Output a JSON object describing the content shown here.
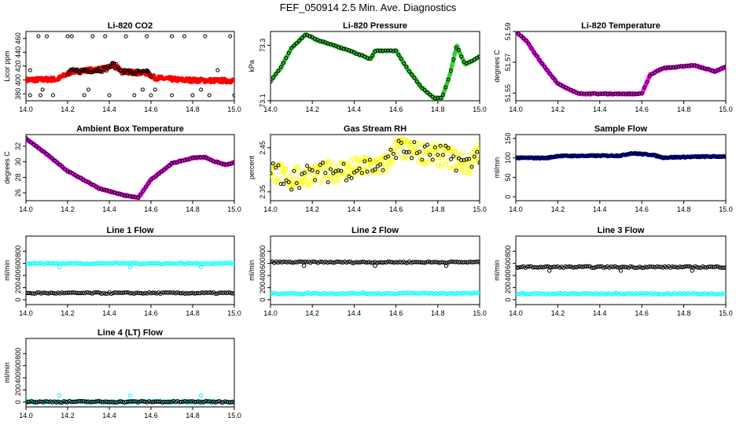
{
  "page_title": "FEF_050914  2.5 Min. Ave. Diagnostics",
  "colors": {
    "black": "#000000",
    "red": "#ff0000",
    "green": "#33cc33",
    "magenta": "#ff00ff",
    "yellow": "#ffff00",
    "cyan": "#00ffff",
    "blue": "#0000aa"
  },
  "chart_data": [
    {
      "id": "co2",
      "type": "scatter",
      "title": "Li-820 CO2",
      "ylabel": "Licor ppm",
      "xlim": [
        14.0,
        15.0
      ],
      "ylim": [
        370,
        470
      ],
      "xticks": [
        "14.0",
        "14.2",
        "14.4",
        "14.6",
        "14.8",
        "15.0"
      ],
      "yticks": [
        380,
        400,
        420,
        440,
        460
      ],
      "series": [
        {
          "name": "co2_line",
          "color": "#ff0000",
          "pattern": "co2"
        },
        {
          "name": "co2_outliers",
          "color": "#000000",
          "pattern": "co2_outliers"
        }
      ]
    },
    {
      "id": "pressure",
      "type": "scatter",
      "title": "Li-820 Pressure",
      "ylabel": "kPa",
      "xlim": [
        14.0,
        15.0
      ],
      "ylim": [
        73.1,
        73.35
      ],
      "xticks": [
        "14.0",
        "14.2",
        "14.4",
        "14.6",
        "14.8",
        "15.0"
      ],
      "yticks": [
        73.1,
        73.3
      ],
      "series": [
        {
          "name": "pressure",
          "color": "#33cc33",
          "pattern": "pressure"
        }
      ]
    },
    {
      "id": "licor_temp",
      "type": "scatter",
      "title": "Li-820 Temperature",
      "ylabel": "degrees C",
      "xlim": [
        14.0,
        15.0
      ],
      "ylim": [
        51.545,
        51.59
      ],
      "xticks": [
        "14.0",
        "14.2",
        "14.4",
        "14.6",
        "14.8",
        "15.0"
      ],
      "yticks": [
        51.55,
        51.57,
        51.59
      ],
      "series": [
        {
          "name": "licor_temp",
          "color": "#ff00ff",
          "pattern": "licor_temp"
        }
      ]
    },
    {
      "id": "box_temp",
      "type": "scatter",
      "title": "Ambient Box Temperature",
      "ylabel": "degrees C",
      "xlim": [
        14.0,
        15.0
      ],
      "ylim": [
        25,
        33.5
      ],
      "xticks": [
        "14.0",
        "14.2",
        "14.4",
        "14.6",
        "14.8",
        "15.0"
      ],
      "yticks": [
        26,
        28,
        30,
        32
      ],
      "series": [
        {
          "name": "box_temp",
          "color": "#ff00ff",
          "pattern": "box_temp"
        }
      ]
    },
    {
      "id": "rh",
      "type": "scatter",
      "title": "Gas Stream RH",
      "ylabel": "percent",
      "xlim": [
        14.0,
        15.0
      ],
      "ylim": [
        2.33,
        2.48
      ],
      "xticks": [
        "14.0",
        "14.2",
        "14.4",
        "14.6",
        "14.8",
        "15.0"
      ],
      "yticks": [
        2.35,
        2.45
      ],
      "series": [
        {
          "name": "rh",
          "color": "#ffff00",
          "pattern": "rh"
        }
      ]
    },
    {
      "id": "sample_flow",
      "type": "scatter",
      "title": "Sample Flow",
      "ylabel": "ml/min",
      "xlim": [
        14.0,
        15.0
      ],
      "ylim": [
        -10,
        160
      ],
      "xticks": [
        "14.0",
        "14.2",
        "14.4",
        "14.6",
        "14.8",
        "15.0"
      ],
      "yticks": [
        0,
        50,
        100,
        150
      ],
      "series": [
        {
          "name": "sample_flow",
          "color": "#0000aa",
          "pattern": "sample_flow"
        }
      ]
    },
    {
      "id": "line1",
      "type": "scatter",
      "title": "Line 1 Flow",
      "ylabel": "ml/min",
      "xlim": [
        14.0,
        15.0
      ],
      "ylim": [
        -80,
        1050
      ],
      "xticks": [
        "14.0",
        "14.2",
        "14.4",
        "14.6",
        "14.8",
        "15.0"
      ],
      "yticks": [
        0,
        200,
        400,
        600,
        800
      ],
      "series": [
        {
          "name": "line1_high",
          "color": "#00ffff",
          "pattern": "flow",
          "level": 600,
          "spike": 540
        },
        {
          "name": "line1_low",
          "color": "#000000",
          "pattern": "flow",
          "level": 110,
          "spike": 110
        }
      ]
    },
    {
      "id": "line2",
      "type": "scatter",
      "title": "Line 2 Flow",
      "ylabel": "ml/min",
      "xlim": [
        14.0,
        15.0
      ],
      "ylim": [
        -80,
        1050
      ],
      "xticks": [
        "14.0",
        "14.2",
        "14.4",
        "14.6",
        "14.8",
        "15.0"
      ],
      "yticks": [
        0,
        200,
        400,
        600,
        800
      ],
      "series": [
        {
          "name": "line2_high",
          "color": "#000000",
          "pattern": "flow",
          "level": 620,
          "spike": 560
        },
        {
          "name": "line2_low",
          "color": "#00ffff",
          "pattern": "flow",
          "level": 105,
          "spike": 105
        }
      ]
    },
    {
      "id": "line3",
      "type": "scatter",
      "title": "Line 3 Flow",
      "ylabel": "ml/min",
      "xlim": [
        14.0,
        15.0
      ],
      "ylim": [
        -80,
        1050
      ],
      "xticks": [
        "14.0",
        "14.2",
        "14.4",
        "14.6",
        "14.8",
        "15.0"
      ],
      "yticks": [
        0,
        200,
        400,
        600,
        800
      ],
      "series": [
        {
          "name": "line3_high",
          "color": "#000000",
          "pattern": "flow",
          "level": 540,
          "spike": 480
        },
        {
          "name": "line3_low",
          "color": "#00ffff",
          "pattern": "flow",
          "level": 100,
          "spike": 100
        }
      ]
    },
    {
      "id": "line4",
      "type": "scatter",
      "title": "Line 4 (LT) Flow",
      "ylabel": "ml/min",
      "xlim": [
        14.0,
        15.0
      ],
      "ylim": [
        -80,
        1050
      ],
      "xticks": [
        "14.0",
        "14.2",
        "14.4",
        "14.6",
        "14.8",
        "15.0"
      ],
      "yticks": [
        0,
        200,
        400,
        600,
        800
      ],
      "series": [
        {
          "name": "line4_cyan",
          "color": "#00ffff",
          "pattern": "flow",
          "level": 5,
          "spike": 110
        },
        {
          "name": "line4_black",
          "color": "#000000",
          "pattern": "flow",
          "level": 5,
          "spike": 5
        }
      ]
    }
  ]
}
